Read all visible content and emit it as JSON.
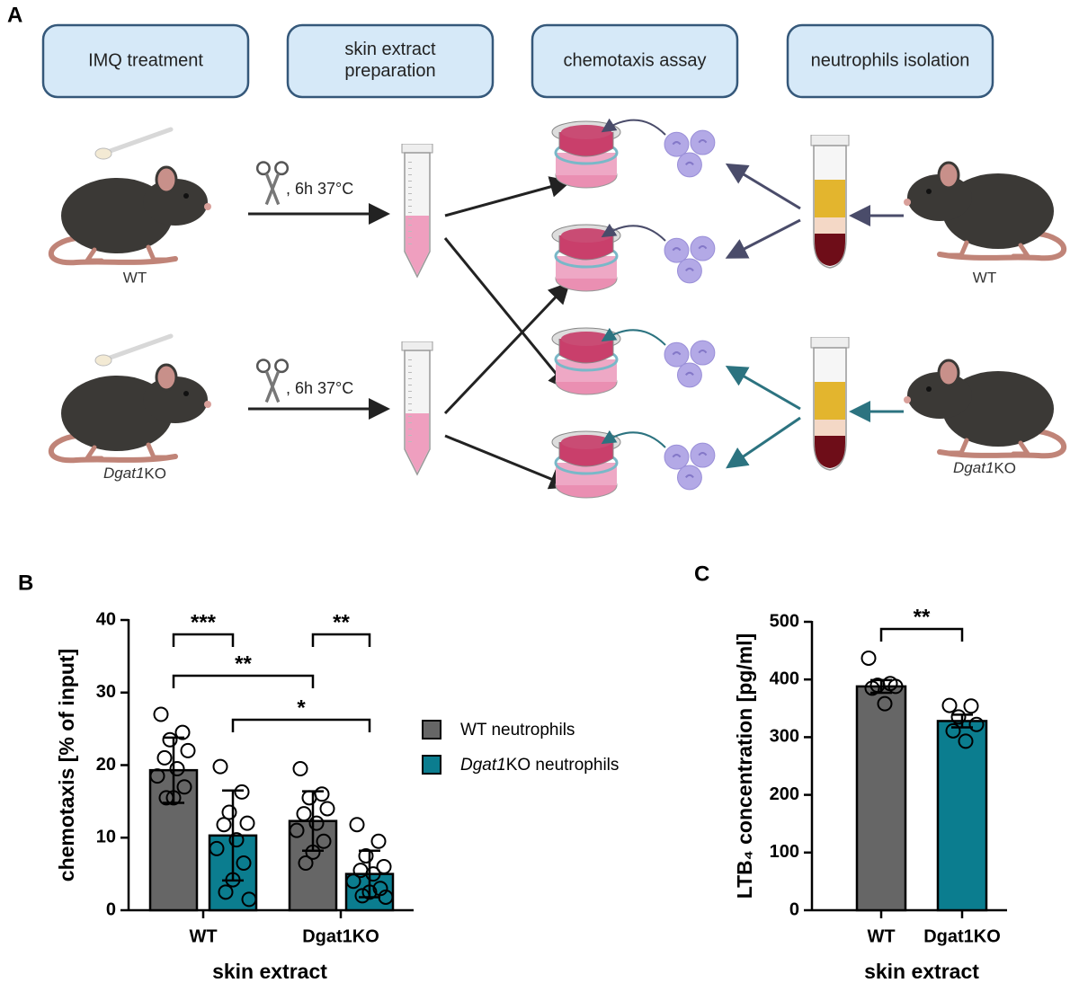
{
  "diagram": {
    "panel": "A",
    "steps": [
      "IMQ treatment",
      "skin extract\npreparation",
      "chemotaxis assay",
      "neutrophils isolation"
    ],
    "incubation": [
      ", 6h 37°C",
      ", 6h 37°C"
    ],
    "left_labels": [
      "WT",
      "Dgat1KO"
    ],
    "right_labels": [
      "WT",
      "Dgat1KO"
    ]
  },
  "chart_data": [
    {
      "type": "bar",
      "panel": "B",
      "ylabel": "chemotaxis [% of input]",
      "xlabel": "skin extract",
      "categories": [
        "WT",
        "Dgat1KO"
      ],
      "series": [
        {
          "name": "WT neutrophils",
          "color": "#666666",
          "values": [
            19.3,
            12.3
          ],
          "errors": [
            4.5,
            4.1
          ],
          "points": [
            [
              27,
              24.5,
              23.5,
              22,
              21,
              19.5,
              18.5,
              17,
              15.5,
              15.5
            ],
            [
              19.5,
              16,
              15.5,
              14,
              13.3,
              12,
              11,
              9.5,
              8,
              6.5
            ]
          ]
        },
        {
          "name": "Dgat1KO neutrophils",
          "color": "#0b7d8f",
          "values": [
            10.3,
            5.0
          ],
          "errors": [
            6.2,
            3.2
          ],
          "points": [
            [
              19.8,
              16.3,
              13.5,
              12,
              11.8,
              9.7,
              8.5,
              6.5,
              4.2,
              2.5,
              1.5
            ],
            [
              11.8,
              9.5,
              7.5,
              6,
              5.5,
              5,
              4,
              3,
              2.5,
              2,
              1.8
            ]
          ]
        }
      ],
      "ylim": [
        0,
        40
      ],
      "yticks": [
        0,
        10,
        20,
        30,
        40
      ],
      "annotations": [
        "***",
        "**",
        "**",
        "*"
      ],
      "legend": "right"
    },
    {
      "type": "bar",
      "panel": "C",
      "ylabel": "LTB₄ concentration [pg/ml]",
      "xlabel": "skin extract",
      "categories": [
        "WT",
        "Dgat1KO"
      ],
      "values": [
        388,
        328
      ],
      "errors": [
        11,
        11
      ],
      "colors": [
        "#666666",
        "#0b7d8f"
      ],
      "points": [
        [
          437,
          393,
          390,
          388,
          385,
          358
        ],
        [
          355,
          354,
          335,
          322,
          311,
          293
        ]
      ],
      "ylim": [
        0,
        500
      ],
      "yticks": [
        0,
        100,
        200,
        300,
        400,
        500
      ],
      "annotations": [
        "**"
      ]
    }
  ]
}
